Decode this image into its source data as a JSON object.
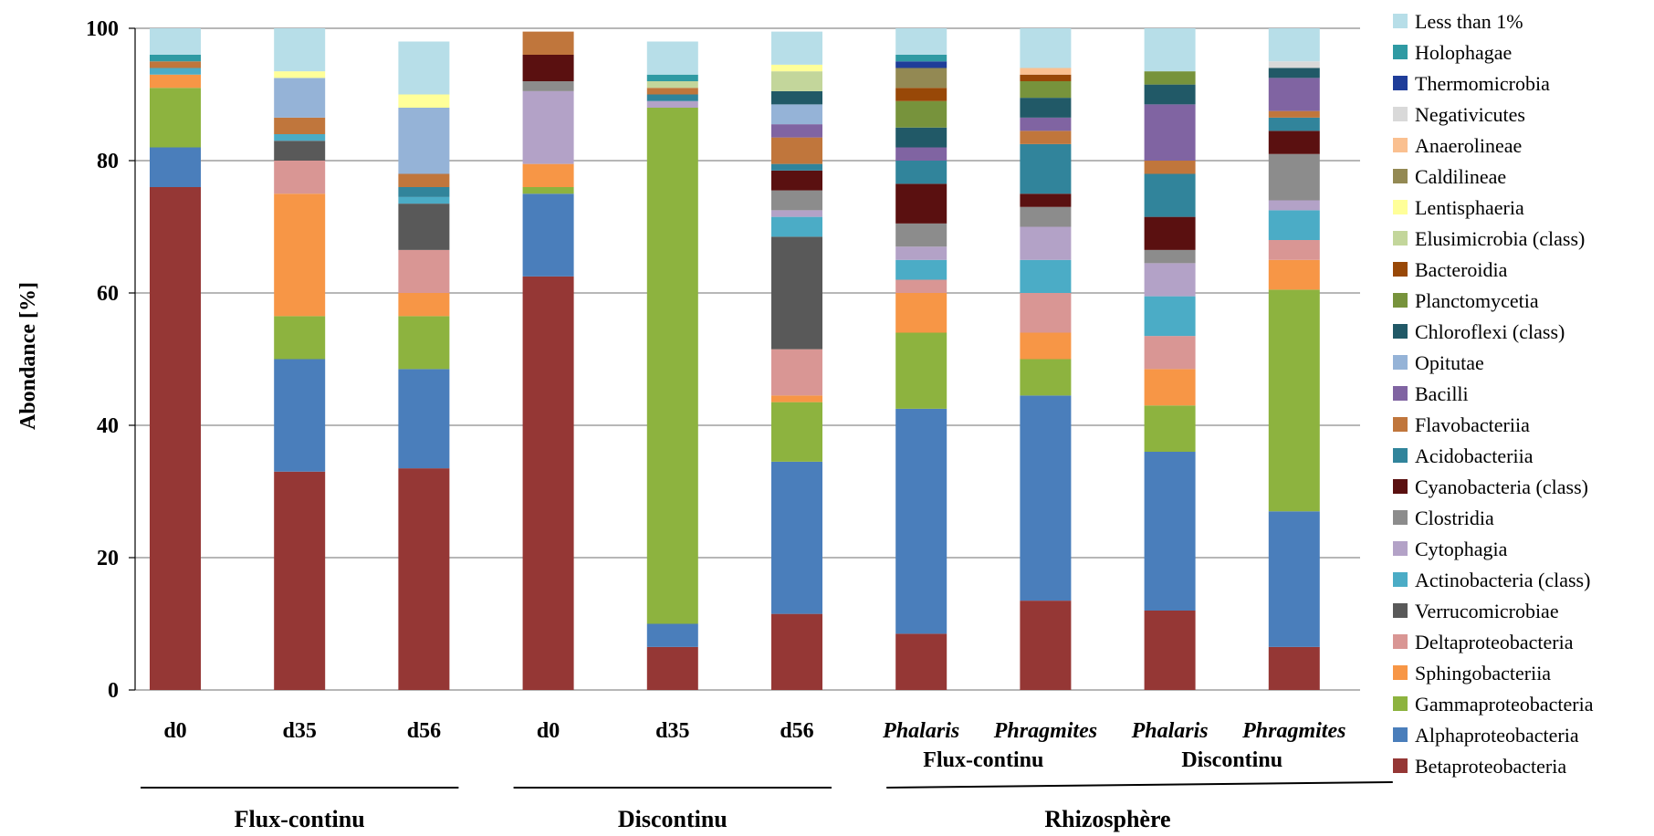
{
  "chart_data": {
    "type": "bar",
    "stacked": true,
    "ylabel": "Abondance [%]",
    "ylim": [
      0,
      100
    ],
    "yticks": [
      0,
      20,
      40,
      60,
      80,
      100
    ],
    "grid": true,
    "legend_position": "right",
    "categories": [
      "d0",
      "d35",
      "d56",
      "d0",
      "d35",
      "d56",
      "Phalaris",
      "Phragmites",
      "Phalaris",
      "Phragmites"
    ],
    "italic_categories": [
      "Phalaris",
      "Phragmites"
    ],
    "sub_labels": [
      {
        "text": "Flux-continu",
        "under": [
          6,
          7
        ]
      },
      {
        "text": "Discontinu",
        "under": [
          8,
          9
        ]
      }
    ],
    "groups": [
      {
        "label": "Flux-continu",
        "start": 0,
        "end": 2
      },
      {
        "label": "Discontinu",
        "start": 3,
        "end": 5
      },
      {
        "label": "Rhizosphère",
        "start": 6,
        "end": 9
      }
    ],
    "series": [
      {
        "name": "Betaproteobacteria",
        "color": "#953735",
        "values": [
          76,
          33,
          33.5,
          62.5,
          6.5,
          11.5,
          8.5,
          13.5,
          12,
          6.5
        ]
      },
      {
        "name": "Alphaproteobacteria",
        "color": "#4a7ebb",
        "values": [
          6,
          17,
          15,
          12.5,
          3.5,
          23,
          34,
          31,
          24,
          20.5
        ]
      },
      {
        "name": "Gammaproteobacteria",
        "color": "#8db33f",
        "values": [
          9,
          6.5,
          8,
          1,
          78,
          9,
          11.5,
          5.5,
          7,
          33.5
        ]
      },
      {
        "name": "Sphingobacteriia",
        "color": "#f79646",
        "values": [
          2,
          18.5,
          3.5,
          3.5,
          0,
          1,
          6,
          4,
          5.5,
          4.5
        ]
      },
      {
        "name": "Deltaproteobacteria",
        "color": "#d99694",
        "values": [
          0,
          5,
          6.5,
          0,
          0,
          7,
          2,
          6,
          5,
          3
        ]
      },
      {
        "name": "Verrucomicrobiae",
        "color": "#595959",
        "values": [
          0,
          3,
          7,
          0,
          0,
          17,
          0,
          0,
          0,
          0
        ]
      },
      {
        "name": "Actinobacteria (class)",
        "color": "#4bacc6",
        "values": [
          1,
          1,
          1,
          0,
          0,
          3,
          3,
          5,
          6,
          4.5
        ]
      },
      {
        "name": "Cytophagia",
        "color": "#b3a2c7",
        "values": [
          0,
          0,
          0,
          11,
          1,
          1,
          2,
          5,
          5,
          1.5
        ]
      },
      {
        "name": "Clostridia",
        "color": "#8c8c8c",
        "values": [
          0,
          0,
          0,
          1.5,
          0,
          3,
          3.5,
          3,
          2,
          7
        ]
      },
      {
        "name": "Cyanobacteria (class)",
        "color": "#5a1010",
        "values": [
          0,
          0,
          0,
          4,
          0,
          3,
          6,
          2,
          5,
          3.5
        ]
      },
      {
        "name": "Acidobacteriia",
        "color": "#31849b",
        "values": [
          0,
          0,
          1.5,
          0,
          1,
          1,
          3.5,
          7.5,
          6.5,
          2
        ]
      },
      {
        "name": "Flavobacteriia",
        "color": "#c0763c",
        "values": [
          1,
          2.5,
          2,
          3.5,
          1,
          4,
          0,
          2,
          2,
          1
        ]
      },
      {
        "name": "Bacilli",
        "color": "#8064a2",
        "values": [
          0,
          0,
          0,
          0,
          0,
          2,
          2,
          2,
          8.5,
          5
        ]
      },
      {
        "name": "Opitutae",
        "color": "#95b3d7",
        "values": [
          0,
          6,
          10,
          0,
          0,
          3,
          0,
          0,
          0,
          0
        ]
      },
      {
        "name": "Chloroflexi (class)",
        "color": "#215967",
        "values": [
          0,
          0,
          0,
          0,
          0,
          2,
          3,
          3,
          3,
          1.5
        ]
      },
      {
        "name": "Planctomycetia",
        "color": "#77933c",
        "values": [
          0,
          0,
          0,
          0,
          0,
          0,
          4,
          2.5,
          2,
          0
        ]
      },
      {
        "name": "Bacteroidia",
        "color": "#984807",
        "values": [
          0,
          0,
          0,
          0,
          0,
          0,
          2,
          1,
          0,
          0
        ]
      },
      {
        "name": "Elusimicrobia (class)",
        "color": "#c3d69b",
        "values": [
          0,
          0,
          0,
          0,
          1,
          3,
          0,
          0,
          0,
          0
        ]
      },
      {
        "name": "Lentisphaeria",
        "color": "#ffff99",
        "values": [
          0,
          1,
          2,
          0,
          0,
          1,
          0,
          0,
          0,
          0
        ]
      },
      {
        "name": "Caldilineae",
        "color": "#938953",
        "values": [
          0,
          0,
          0,
          0,
          0,
          0,
          3,
          0,
          0,
          0
        ]
      },
      {
        "name": "Anaerolineae",
        "color": "#fac090",
        "values": [
          0,
          0,
          0,
          0,
          0,
          0,
          0,
          1,
          0,
          0
        ]
      },
      {
        "name": "Negativicutes",
        "color": "#d9d9d9",
        "values": [
          0,
          0,
          0,
          0,
          0,
          0,
          0,
          0,
          0,
          1
        ]
      },
      {
        "name": "Thermomicrobia",
        "color": "#1f3d99",
        "values": [
          0,
          0,
          0,
          0,
          0,
          0,
          1,
          0,
          0,
          0
        ]
      },
      {
        "name": "Holophagae",
        "color": "#2f9aa3",
        "values": [
          1,
          0,
          0,
          0,
          1,
          0,
          1,
          0,
          0,
          0
        ]
      },
      {
        "name": "Less than 1%",
        "color": "#b7dee8",
        "values": [
          4,
          6.5,
          8,
          0,
          5,
          5,
          4,
          6,
          6.5,
          5
        ]
      }
    ]
  }
}
